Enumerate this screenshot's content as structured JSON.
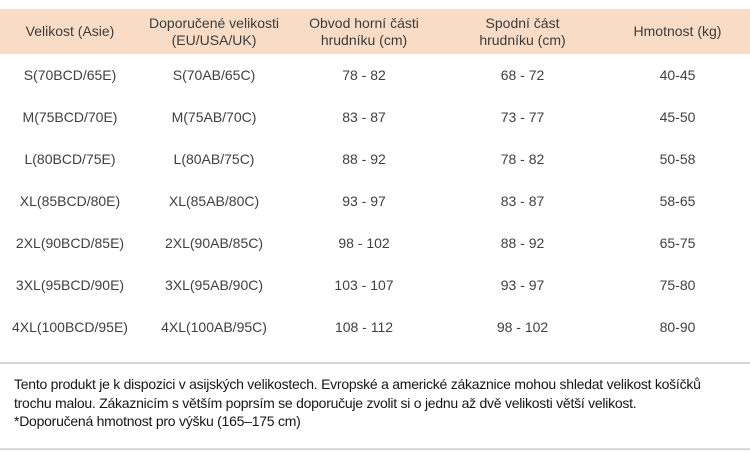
{
  "colors": {
    "header_bg": "#f8dcc6",
    "separator": "#d6d6d6"
  },
  "table": {
    "headers": [
      {
        "line1": "Velikost (Asie)",
        "line2": ""
      },
      {
        "line1": "Doporučené velikosti",
        "line2": "(EU/USA/UK)"
      },
      {
        "line1": "Obvod horní části",
        "line2": "hrudníku (cm)"
      },
      {
        "line1": "Spodní část",
        "line2": "hrudníku (cm)"
      },
      {
        "line1": "Hmotnost (kg)",
        "line2": ""
      }
    ],
    "rows": [
      [
        "S(70BCD/65E)",
        "S(70AB/65C)",
        "78 - 82",
        "68 - 72",
        "40-45"
      ],
      [
        "M(75BCD/70E)",
        "M(75AB/70C)",
        "83 - 87",
        "73 - 77",
        "45-50"
      ],
      [
        "L(80BCD/75E)",
        "L(80AB/75C)",
        "88 - 92",
        "78 - 82",
        "50-58"
      ],
      [
        "XL(85BCD/80E)",
        "XL(85AB/80C)",
        "93 - 97",
        "83 - 87",
        "58-65"
      ],
      [
        "2XL(90BCD/85E)",
        "2XL(90AB/85C)",
        "98 - 102",
        "88 - 92",
        "65-75"
      ],
      [
        "3XL(95BCD/90E)",
        "3XL(95AB/90C)",
        "103 - 107",
        "93 - 97",
        "75-80"
      ],
      [
        "4XL(100BCD/95E)",
        "4XL(100AB/95C)",
        "108 - 112",
        "98 - 102",
        "80-90"
      ]
    ]
  },
  "footer": {
    "line1": "Tento produkt je k dispozici v asijských velikostech. Evropské a americké zákaznice mohou shledat velikost košíčků",
    "line2": "trochu malou. Zákaznicím s větším poprsím se doporučuje zvolit si o jednu až dvě velikosti větší velikost.",
    "line3": "*Doporučená hmotnost pro výšku (165–175 cm)"
  }
}
